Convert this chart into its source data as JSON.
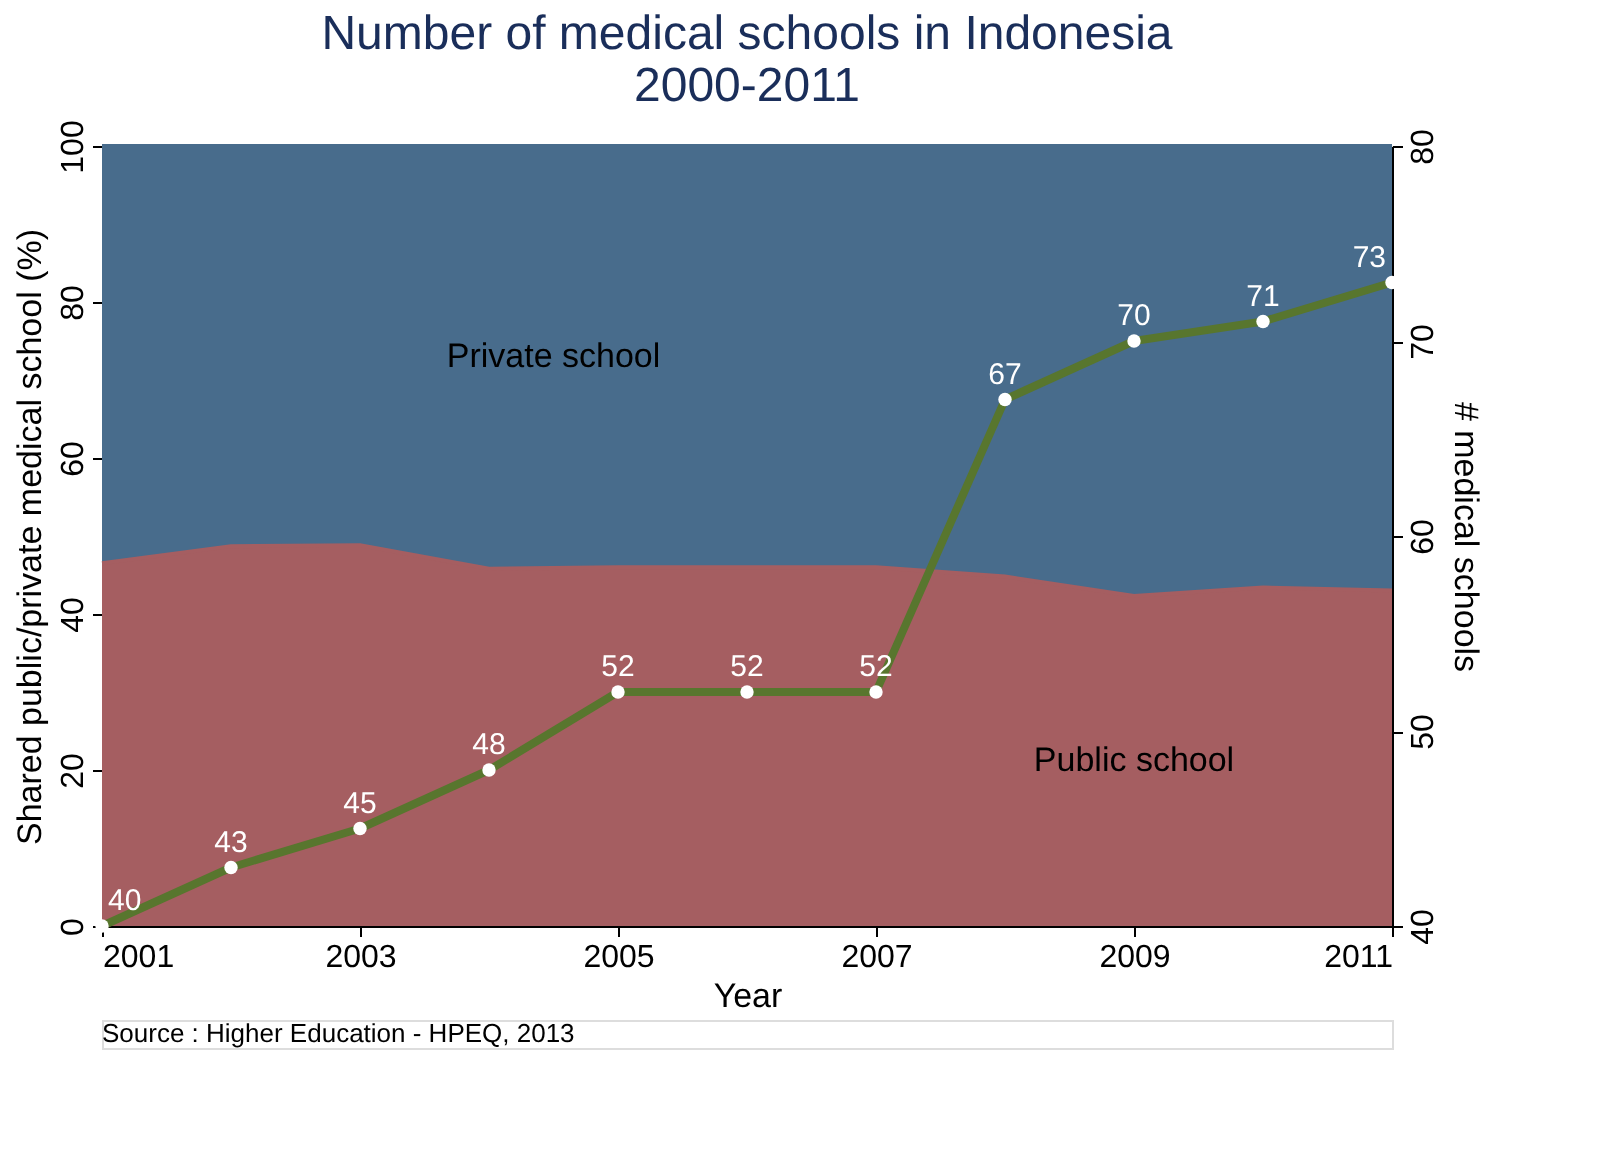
{
  "chart_data": {
    "type": "area",
    "stacked": true,
    "title": [
      "Number of medical schools in Indonesia",
      "2000-2011"
    ],
    "xlabel": "Year",
    "ylabel": "Shared public/private medical school (%)",
    "y2label": "# medical schools",
    "x": [
      2001,
      2002,
      2003,
      2004,
      2005,
      2006,
      2007,
      2008,
      2009,
      2010,
      2011
    ],
    "series": [
      {
        "name": "Public school",
        "color": "#a55e61",
        "values": [
          46.5,
          48.7,
          48.8,
          45.8,
          46,
          46,
          46,
          44.8,
          42.3,
          43.4,
          43
        ]
      },
      {
        "name": "Private school",
        "color": "#486c8c",
        "values": [
          53.5,
          51.3,
          51.2,
          54.2,
          54,
          54,
          54,
          55.2,
          57.7,
          56.6,
          57
        ]
      },
      {
        "type": "line",
        "axis": "y2",
        "line_style": "solid",
        "color": "#58762e",
        "marker": "circle",
        "values": [
          40,
          43,
          45,
          48,
          52,
          52,
          52,
          67,
          70,
          71,
          73
        ],
        "value_labels": [
          "40",
          "43",
          "45",
          "48",
          "52",
          "52",
          "52",
          "67",
          "70",
          "71",
          "73"
        ]
      }
    ],
    "xlim": [
      2001,
      2011
    ],
    "xticks": [
      2001,
      2003,
      2005,
      2007,
      2009,
      2011
    ],
    "ylim": [
      0,
      100
    ],
    "yticks": [
      0,
      20,
      40,
      60,
      80,
      100
    ],
    "y2lim": [
      40,
      80
    ],
    "y2ticks": [
      40,
      50,
      60,
      70,
      80
    ],
    "legend": false,
    "annotations": [
      "Source : Higher Education - HPEQ, 2013"
    ]
  }
}
